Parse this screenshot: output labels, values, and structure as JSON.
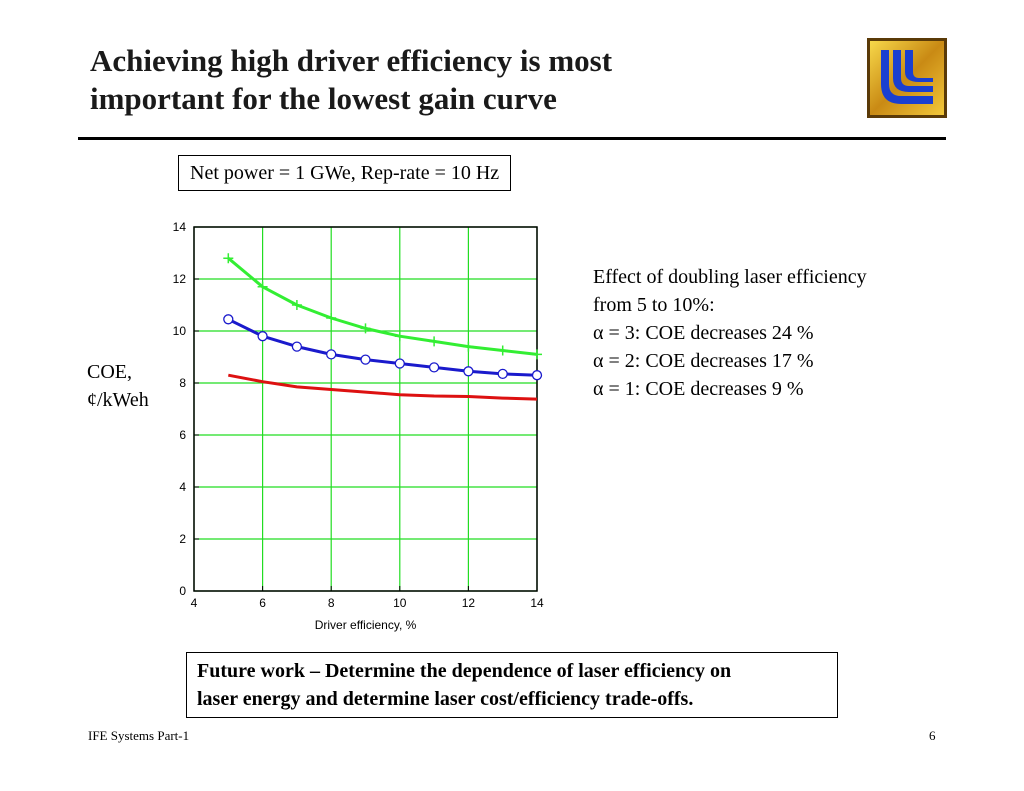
{
  "slide": {
    "title_line1": "Achieving high driver efficiency is most",
    "title_line2": "important for the lowest gain curve",
    "param_box": "Net power = 1 GWe, Rep-rate = 10 Hz",
    "ylabel_line1": "COE,",
    "ylabel_line2": "¢/kWeh",
    "effect_lines": [
      "Effect of doubling laser efficiency",
      "from 5 to 10%:",
      "α = 3: COE decreases 24 %",
      "α = 2: COE decreases 17 %",
      "α = 1: COE decreases  9 %"
    ],
    "future_line1": "Future work – Determine the dependence of laser efficiency on",
    "future_line2": "laser energy and determine laser cost/efficiency trade-offs.",
    "footer_left": "IFE Systems Part-1",
    "page_number": "6",
    "logo_icon": "llnl-logo-icon"
  },
  "chart_data": {
    "type": "line",
    "xlabel": "Driver efficiency, %",
    "ylabel": "COE, ¢/kWeh",
    "xlim": [
      4,
      14
    ],
    "ylim": [
      0,
      14
    ],
    "xticks": [
      4,
      6,
      8,
      10,
      12,
      14
    ],
    "yticks": [
      0,
      2,
      4,
      6,
      8,
      10,
      12,
      14
    ],
    "grid": true,
    "grid_color": "#22dd22",
    "series": [
      {
        "color": "#33ee33",
        "marker": "plus",
        "x": [
          5,
          6,
          7,
          8,
          9,
          10,
          11,
          12,
          13,
          14
        ],
        "y": [
          12.8,
          11.7,
          11.0,
          10.5,
          10.1,
          9.8,
          9.6,
          9.4,
          9.25,
          9.1
        ]
      },
      {
        "color": "#1a1acc",
        "marker": "circle",
        "x": [
          5,
          6,
          7,
          8,
          9,
          10,
          11,
          12,
          13,
          14
        ],
        "y": [
          10.45,
          9.8,
          9.4,
          9.1,
          8.9,
          8.75,
          8.6,
          8.45,
          8.35,
          8.3
        ]
      },
      {
        "color": "#dd1111",
        "marker": "none",
        "x": [
          5,
          6,
          7,
          8,
          9,
          10,
          11,
          12,
          13,
          14
        ],
        "y": [
          8.3,
          8.05,
          7.85,
          7.75,
          7.65,
          7.55,
          7.5,
          7.48,
          7.42,
          7.38
        ]
      }
    ]
  }
}
